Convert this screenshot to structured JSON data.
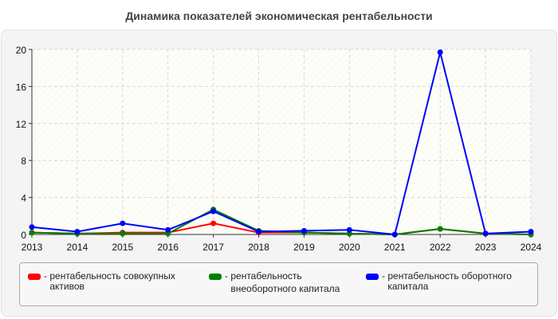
{
  "title": "Динамика показателей экономическая рентабельности",
  "chart_data": {
    "type": "line",
    "title": "Динамика показателей экономическая рентабельности",
    "xlabel": "",
    "ylabel": "",
    "categories": [
      "2013",
      "2014",
      "2015",
      "2016",
      "2017",
      "2018",
      "2019",
      "2020",
      "2021",
      "2022",
      "2023",
      "2024"
    ],
    "ylim": [
      0,
      20
    ],
    "yticks": [
      0,
      4,
      8,
      12,
      16,
      20
    ],
    "grid": true,
    "legend_position": "bottom",
    "series": [
      {
        "name": "рентабельность совокупных активов",
        "color": "#ff0000",
        "values": [
          0.2,
          0.1,
          0.2,
          0.2,
          1.2,
          0.2,
          0.2,
          0.1,
          0.0,
          0.6,
          0.1,
          0.0
        ]
      },
      {
        "name": "рентабельность внеоборотного капитала",
        "color": "#008000",
        "values": [
          0.2,
          0.1,
          0.1,
          0.1,
          2.7,
          0.4,
          0.2,
          0.1,
          0.0,
          0.6,
          0.1,
          0.0
        ]
      },
      {
        "name": "рентабельность оборотного капитала",
        "color": "#0000ff",
        "values": [
          0.8,
          0.3,
          1.2,
          0.5,
          2.5,
          0.3,
          0.4,
          0.5,
          0.0,
          19.7,
          0.1,
          0.3
        ]
      }
    ]
  },
  "legend": [
    {
      "label": "рентабельность совокупных активов",
      "color": "#ff0000"
    },
    {
      "label": "рентабельность внеоборотного капитала",
      "color": "#008000"
    },
    {
      "label": "рентабельность оборотного капитала",
      "color": "#0000ff"
    }
  ]
}
